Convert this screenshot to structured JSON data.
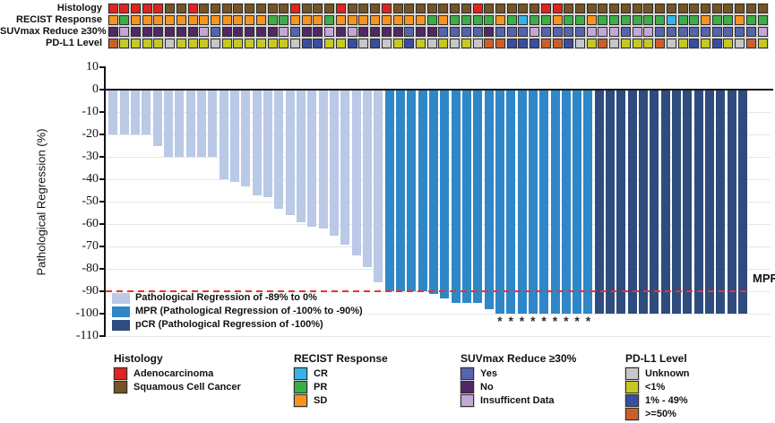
{
  "chart_data": {
    "type": "bar",
    "subtype": "waterfall",
    "n_patients": 58,
    "title": "",
    "xlabel": "",
    "ylabel": "Pathological Regression (%)",
    "ylim": [
      -110,
      10
    ],
    "yticks": [
      10,
      0,
      -10,
      -20,
      -30,
      -40,
      -50,
      -60,
      -70,
      -80,
      -90,
      -100,
      -110
    ],
    "grid": true,
    "legend_position": "inside-bottom-left",
    "reference_line": {
      "value": -90,
      "label": "MPR",
      "color": "#E8332A",
      "style": "dashed"
    },
    "asterisk_symbol": "*",
    "bar_groups": [
      {
        "id": "reg",
        "label": "Pathological Regression of -89% to 0%",
        "color": "#B9C9E6"
      },
      {
        "id": "mpr",
        "label": "MPR (Pathological Regression of -100% to -90%)",
        "color": "#2F87C8"
      },
      {
        "id": "pcr",
        "label": "pCR (Pathological Regression of -100%)",
        "color": "#2E4C7E"
      }
    ],
    "bars": [
      {
        "v": -20,
        "g": "reg"
      },
      {
        "v": -20,
        "g": "reg"
      },
      {
        "v": -20,
        "g": "reg"
      },
      {
        "v": -20,
        "g": "reg"
      },
      {
        "v": -25,
        "g": "reg"
      },
      {
        "v": -30,
        "g": "reg"
      },
      {
        "v": -30,
        "g": "reg"
      },
      {
        "v": -30,
        "g": "reg"
      },
      {
        "v": -30,
        "g": "reg"
      },
      {
        "v": -30,
        "g": "reg"
      },
      {
        "v": -40,
        "g": "reg"
      },
      {
        "v": -41,
        "g": "reg"
      },
      {
        "v": -43,
        "g": "reg"
      },
      {
        "v": -47,
        "g": "reg"
      },
      {
        "v": -48,
        "g": "reg"
      },
      {
        "v": -53,
        "g": "reg"
      },
      {
        "v": -56,
        "g": "reg"
      },
      {
        "v": -59,
        "g": "reg"
      },
      {
        "v": -61,
        "g": "reg"
      },
      {
        "v": -62,
        "g": "reg"
      },
      {
        "v": -65,
        "g": "reg"
      },
      {
        "v": -69,
        "g": "reg"
      },
      {
        "v": -74,
        "g": "reg"
      },
      {
        "v": -79,
        "g": "reg"
      },
      {
        "v": -86,
        "g": "reg"
      },
      {
        "v": -90,
        "g": "mpr"
      },
      {
        "v": -90,
        "g": "mpr"
      },
      {
        "v": -90,
        "g": "mpr"
      },
      {
        "v": -90,
        "g": "mpr"
      },
      {
        "v": -91,
        "g": "mpr"
      },
      {
        "v": -93,
        "g": "mpr"
      },
      {
        "v": -95,
        "g": "mpr"
      },
      {
        "v": -95,
        "g": "mpr"
      },
      {
        "v": -95,
        "g": "mpr"
      },
      {
        "v": -98,
        "g": "mpr"
      },
      {
        "v": -100,
        "g": "mpr",
        "a": true
      },
      {
        "v": -100,
        "g": "mpr",
        "a": true
      },
      {
        "v": -100,
        "g": "mpr",
        "a": true
      },
      {
        "v": -100,
        "g": "mpr",
        "a": true
      },
      {
        "v": -100,
        "g": "mpr",
        "a": true
      },
      {
        "v": -100,
        "g": "mpr",
        "a": true
      },
      {
        "v": -100,
        "g": "mpr",
        "a": true
      },
      {
        "v": -100,
        "g": "mpr",
        "a": true
      },
      {
        "v": -100,
        "g": "mpr",
        "a": true
      },
      {
        "v": -100,
        "g": "pcr"
      },
      {
        "v": -100,
        "g": "pcr"
      },
      {
        "v": -100,
        "g": "pcr"
      },
      {
        "v": -100,
        "g": "pcr"
      },
      {
        "v": -100,
        "g": "pcr"
      },
      {
        "v": -100,
        "g": "pcr"
      },
      {
        "v": -100,
        "g": "pcr"
      },
      {
        "v": -100,
        "g": "pcr"
      },
      {
        "v": -100,
        "g": "pcr"
      },
      {
        "v": -100,
        "g": "pcr"
      },
      {
        "v": -100,
        "g": "pcr"
      },
      {
        "v": -100,
        "g": "pcr"
      },
      {
        "v": -100,
        "g": "pcr"
      },
      {
        "v": -100,
        "g": "pcr"
      }
    ],
    "annotation_tracks": [
      {
        "name": "histology",
        "label": "Histology",
        "codes": {
          "A": {
            "label": "Adenocarcinoma",
            "color": "#E3231D"
          },
          "S": {
            "label": "Squamous Cell Cancer",
            "color": "#755425"
          }
        },
        "cells": "AAAAASSASSSSSSSSASSSASSSASSSSSSSASSSSSAASSSSSSSSSSSSSSSSSS"
      },
      {
        "name": "recist-response",
        "label": "RECIST Response",
        "codes": {
          "C": {
            "label": "CR",
            "color": "#35B4E5"
          },
          "P": {
            "label": "PR",
            "color": "#3BAE48"
          },
          "D": {
            "label": "SD",
            "color": "#F7941E"
          }
        },
        "cells": "DPDDDDDDDDDDDDPPDDDPDDDDDDDDPDPPPPDPCPPDPPDPPPPPPCPPDPPDPP"
      },
      {
        "name": "suvmax-reduce",
        "label": "SUVmax Reduce ≥30%",
        "codes": {
          "Y": {
            "label": "Yes",
            "color": "#5564AE"
          },
          "N": {
            "label": "No",
            "color": "#512864"
          },
          "I": {
            "label": "Insufficent Data",
            "color": "#C4A7D8"
          }
        },
        "cells": "NINNNNNNIYNNNNNIYNNININNNNYNNYYYYNYYYIYYYYIIIYIIYYYYYYYYYI"
      },
      {
        "name": "pdl1-level",
        "label": "PD-L1 Level",
        "codes": {
          "U": {
            "label": "Unknown",
            "color": "#C7C7C9"
          },
          "L": {
            "label": "<1%",
            "color": "#C6C825"
          },
          "M": {
            "label": "1% - 49%",
            "color": "#3A4D9F"
          },
          "H": {
            "label": ">=50%",
            "color": "#CB5F2C"
          }
        },
        "cells": "HLLLLULLLULLLLLLUMMLLMUMULMLULULUHHMMMHHMULHULLLHULMLMLUHL"
      }
    ],
    "legends": [
      {
        "id": "histology",
        "title": "Histology",
        "items": [
          {
            "label": "Adenocarcinoma",
            "color": "#E3231D"
          },
          {
            "label": "Squamous Cell Cancer",
            "color": "#755425"
          }
        ]
      },
      {
        "id": "recist-response",
        "title": "RECIST Response",
        "items": [
          {
            "label": "CR",
            "color": "#35B4E5"
          },
          {
            "label": "PR",
            "color": "#3BAE48"
          },
          {
            "label": "SD",
            "color": "#F7941E"
          }
        ]
      },
      {
        "id": "suvmax-reduce",
        "title": "SUVmax Reduce ≥30%",
        "items": [
          {
            "label": "Yes",
            "color": "#5564AE"
          },
          {
            "label": "No",
            "color": "#512864"
          },
          {
            "label": "Insufficent Data",
            "color": "#C4A7D8"
          }
        ]
      },
      {
        "id": "pdl1-level",
        "title": "PD-L1 Level",
        "items": [
          {
            "label": "Unknown",
            "color": "#C7C7C9"
          },
          {
            "label": "<1%",
            "color": "#C6C825"
          },
          {
            "label": "1% - 49%",
            "color": "#3A4D9F"
          },
          {
            "label": ">=50%",
            "color": "#CB5F2C"
          }
        ]
      }
    ]
  }
}
